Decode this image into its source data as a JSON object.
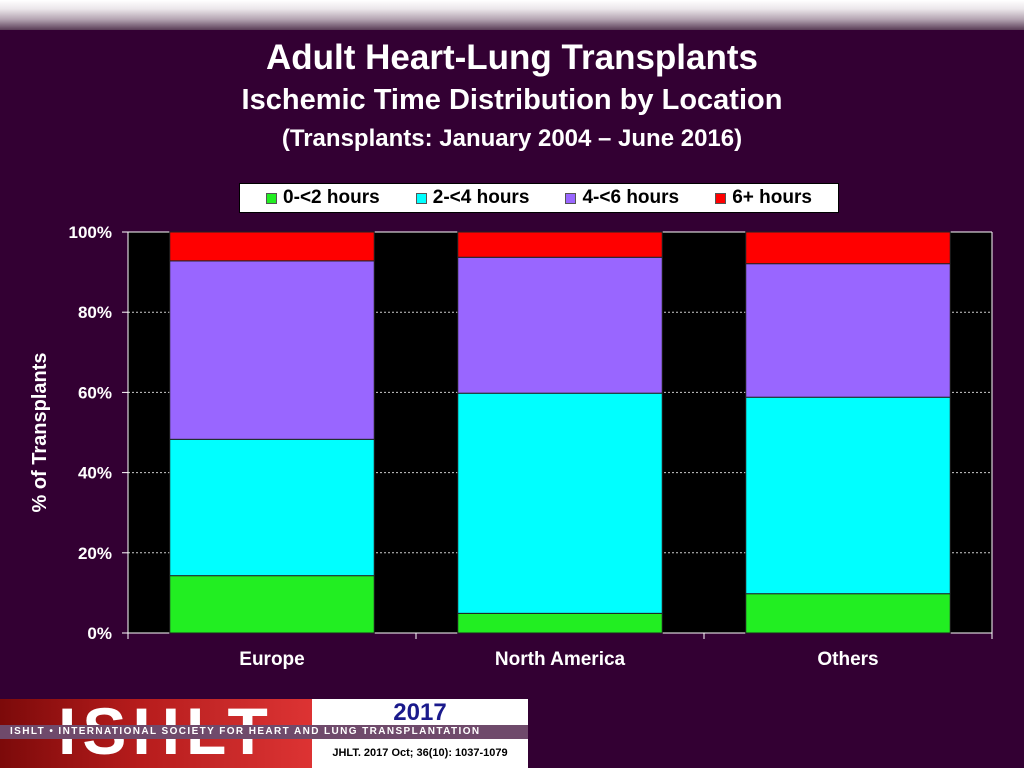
{
  "header": {
    "title": "Adult Heart-Lung Transplants",
    "subtitle": "Ischemic Time Distribution by Location",
    "subtitle2": "(Transplants: January 2004 – June 2016)"
  },
  "chart_data": {
    "type": "bar",
    "stacked": true,
    "categories": [
      "Europe",
      "North America",
      "Others"
    ],
    "series": [
      {
        "name": "0-<2 hours",
        "color": "#22ee22",
        "values": [
          14.3,
          4.9,
          9.8
        ]
      },
      {
        "name": "2-<4 hours",
        "color": "#00ffff",
        "values": [
          34.0,
          54.9,
          49.0
        ]
      },
      {
        "name": "4-<6 hours",
        "color": "#9966ff",
        "values": [
          44.5,
          33.9,
          33.3
        ]
      },
      {
        "name": "6+ hours",
        "color": "#ff0000",
        "values": [
          7.2,
          6.3,
          7.9
        ]
      }
    ],
    "title": "",
    "xlabel": "",
    "ylabel": "% of Transplants",
    "ylim": [
      0,
      100
    ],
    "yticks": [
      "0%",
      "20%",
      "40%",
      "60%",
      "80%",
      "100%"
    ],
    "grid": true,
    "legend_position": "top"
  },
  "footer": {
    "logo_text": "ISHLT",
    "society": "ISHLT • INTERNATIONAL SOCIETY FOR HEART AND LUNG TRANSPLANTATION",
    "year": "2017",
    "citation": "JHLT. 2017 Oct; 36(10): 1037-1079"
  }
}
